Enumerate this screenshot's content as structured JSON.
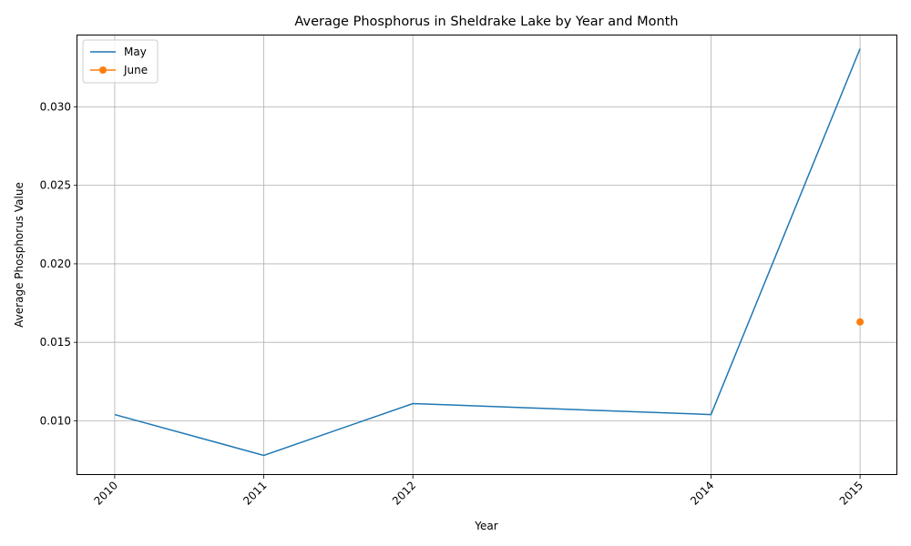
{
  "chart_data": {
    "type": "line",
    "title": "Average Phosphorus in Sheldrake Lake by Year and Month",
    "xlabel": "Year",
    "ylabel": "Average Phosphorus Value",
    "x_ticks": [
      2010,
      2011,
      2012,
      2014,
      2015
    ],
    "y_ticks": [
      0.01,
      0.015,
      0.02,
      0.025,
      0.03
    ],
    "xlim": [
      2009.75,
      2015.25
    ],
    "ylim": [
      0.00655,
      0.0346
    ],
    "grid": true,
    "legend_position": "top-left",
    "series": [
      {
        "name": "May",
        "color": "#1f77b4",
        "marker": "none",
        "x": [
          2010,
          2011,
          2012,
          2014,
          2015
        ],
        "values": [
          0.0104,
          0.0078,
          0.0111,
          0.0104,
          0.0337
        ]
      },
      {
        "name": "June",
        "color": "#ff7f0e",
        "marker": "circle",
        "x": [
          2015
        ],
        "values": [
          0.0163
        ]
      }
    ]
  }
}
